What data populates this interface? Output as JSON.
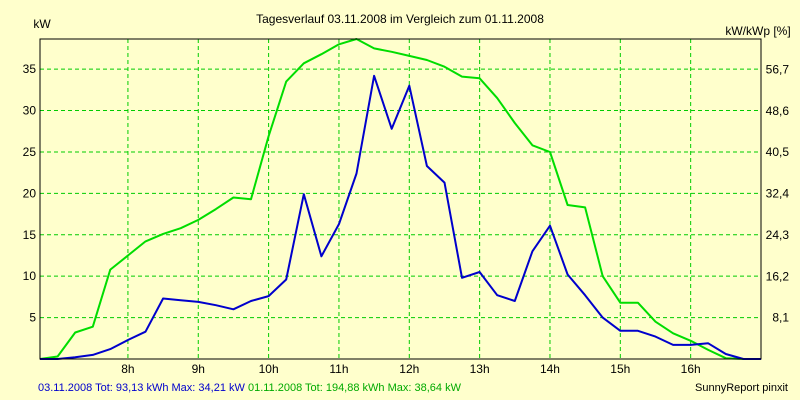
{
  "chart_data": {
    "type": "line",
    "title": "Tagesverlauf 03.11.2008 im Vergleich zum 01.11.2008",
    "y_left_label": "kW",
    "y_right_label": "kW/kWp [%]",
    "x_range": [
      6.75,
      17.0
    ],
    "y_range": [
      0,
      38.64
    ],
    "x_ticks": [
      8,
      9,
      10,
      11,
      12,
      13,
      14,
      15,
      16
    ],
    "x_tick_labels": [
      "8h",
      "9h",
      "10h",
      "11h",
      "12h",
      "13h",
      "14h",
      "15h",
      "16h"
    ],
    "y_left_ticks": [
      5,
      10,
      15,
      20,
      25,
      30,
      35
    ],
    "y_left_tick_labels": [
      "5",
      "10",
      "15",
      "20",
      "25",
      "30",
      "35"
    ],
    "y_right_ticks": [
      5.0,
      9.99,
      14.99,
      19.98,
      24.98,
      29.97,
      34.97
    ],
    "y_right_tick_labels": [
      "8,1",
      "16,2",
      "24,3",
      "32,4",
      "40,5",
      "48,6",
      "56,7"
    ],
    "grid": true,
    "series": [
      {
        "name": "03.11.2008",
        "color": "#0000cc",
        "x": [
          6.75,
          7.0,
          7.25,
          7.5,
          7.75,
          8.0,
          8.25,
          8.5,
          8.75,
          9.0,
          9.25,
          9.5,
          9.75,
          10.0,
          10.25,
          10.5,
          10.75,
          11.0,
          11.25,
          11.5,
          11.75,
          12.0,
          12.25,
          12.5,
          12.75,
          13.0,
          13.25,
          13.5,
          13.75,
          14.0,
          14.25,
          14.5,
          14.75,
          15.0,
          15.25,
          15.5,
          15.75,
          16.0,
          16.25,
          16.5,
          16.75,
          17.0
        ],
        "y": [
          0,
          0,
          0.2,
          0.5,
          1.2,
          2.3,
          3.3,
          7.3,
          7.1,
          6.9,
          6.5,
          6.0,
          7.0,
          7.6,
          9.6,
          19.9,
          12.4,
          16.3,
          22.4,
          34.2,
          27.8,
          33.0,
          23.3,
          21.3,
          9.8,
          10.5,
          7.7,
          7.0,
          13.0,
          16.1,
          10.2,
          7.7,
          5.0,
          3.4,
          3.4,
          2.7,
          1.7,
          1.7,
          1.9,
          0.6,
          0,
          0
        ]
      },
      {
        "name": "01.11.2008",
        "color": "#00dd00",
        "x": [
          6.75,
          7.0,
          7.25,
          7.5,
          7.75,
          8.0,
          8.25,
          8.5,
          8.75,
          9.0,
          9.25,
          9.5,
          9.75,
          10.0,
          10.25,
          10.5,
          10.75,
          11.0,
          11.25,
          11.5,
          11.75,
          12.0,
          12.25,
          12.5,
          12.75,
          13.0,
          13.25,
          13.5,
          13.75,
          14.0,
          14.25,
          14.5,
          14.75,
          15.0,
          15.25,
          15.5,
          15.75,
          16.0,
          16.25,
          16.5,
          16.75,
          17.0
        ],
        "y": [
          0,
          0.3,
          3.2,
          3.9,
          10.8,
          12.5,
          14.2,
          15.1,
          15.8,
          16.8,
          18.1,
          19.5,
          19.3,
          26.9,
          33.5,
          35.7,
          36.8,
          38.0,
          38.64,
          37.5,
          37.1,
          36.6,
          36.1,
          35.3,
          34.1,
          33.9,
          31.5,
          28.5,
          25.8,
          25.0,
          18.6,
          18.3,
          10.0,
          6.8,
          6.8,
          4.5,
          3.1,
          2.2,
          1.1,
          0.1,
          0,
          0
        ]
      }
    ]
  },
  "footer": {
    "series1_summary": "03.11.2008 Tot: 93,13 kWh Max: 34,21 kW",
    "series2_summary": "01.11.2008 Tot: 194,88 kWh Max: 38,64 kW",
    "credit": "SunnyReport pinxit"
  }
}
